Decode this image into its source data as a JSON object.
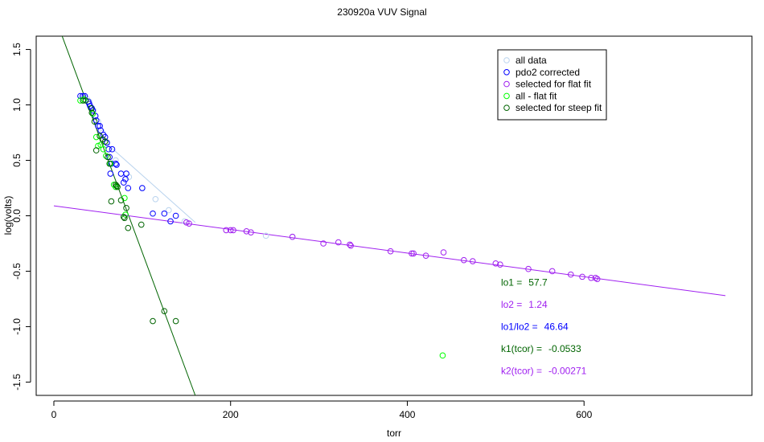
{
  "chart_data": {
    "type": "scatter",
    "title": "230920a   VUV Signal",
    "xlabel": "torr",
    "ylabel": "log(volts)",
    "xlim": [
      -20,
      790
    ],
    "ylim": [
      -1.62,
      1.62
    ],
    "x_ticks": [
      0,
      200,
      400,
      600
    ],
    "y_ticks": [
      -1.5,
      -1.0,
      -0.5,
      0.0,
      0.5,
      1.0,
      1.5
    ],
    "x_tick_labels": [
      "0",
      "200",
      "400",
      "600"
    ],
    "y_tick_labels": [
      "-1.5",
      "-1.0",
      "-0.5",
      "0.0",
      "0.5",
      "1.0",
      "1.5"
    ],
    "grid": false,
    "legend_position": "top-right",
    "legend": [
      {
        "label": "all data",
        "color": "#b9d3ee"
      },
      {
        "label": "pdo2 corrected",
        "color": "#0000ff"
      },
      {
        "label": "selected for flat fit",
        "color": "#a020f0"
      },
      {
        "label": "all - flat fit",
        "color": "#00ff00"
      },
      {
        "label": "selected for steep fit",
        "color": "#006400"
      }
    ],
    "series": [
      {
        "name": "all data",
        "color": "#b9d3ee",
        "marker": "circle",
        "points": [
          [
            32,
            1.08
          ],
          [
            37,
            1.06
          ],
          [
            40,
            1.03
          ],
          [
            45,
            0.95
          ],
          [
            50,
            0.85
          ],
          [
            55,
            0.75
          ],
          [
            60,
            0.65
          ],
          [
            70,
            0.5
          ],
          [
            85,
            0.35
          ],
          [
            100,
            0.25
          ],
          [
            115,
            0.15
          ],
          [
            130,
            0.05
          ],
          [
            148,
            -0.05
          ],
          [
            240,
            -0.18
          ],
          [
            270,
            -0.19
          ]
        ]
      },
      {
        "name": "pdo2 corrected",
        "color": "#0000ff",
        "marker": "circle",
        "points": [
          [
            30,
            1.08
          ],
          [
            33,
            1.08
          ],
          [
            35,
            1.08
          ],
          [
            39,
            1.03
          ],
          [
            40,
            1.01
          ],
          [
            41,
            0.99
          ],
          [
            43,
            0.97
          ],
          [
            44,
            0.95
          ],
          [
            47,
            0.9
          ],
          [
            48,
            0.86
          ],
          [
            50,
            0.81
          ],
          [
            52,
            0.81
          ],
          [
            53,
            0.77
          ],
          [
            56,
            0.73
          ],
          [
            58,
            0.71
          ],
          [
            60,
            0.66
          ],
          [
            62,
            0.6
          ],
          [
            66,
            0.6
          ],
          [
            63,
            0.53
          ],
          [
            65,
            0.47
          ],
          [
            70,
            0.47
          ],
          [
            71,
            0.46
          ],
          [
            64,
            0.38
          ],
          [
            76,
            0.38
          ],
          [
            82,
            0.38
          ],
          [
            81,
            0.33
          ],
          [
            79,
            0.3
          ],
          [
            84,
            0.25
          ],
          [
            100,
            0.25
          ],
          [
            112,
            0.02
          ],
          [
            125,
            0.02
          ],
          [
            132,
            -0.05
          ],
          [
            138,
            0.0
          ]
        ]
      },
      {
        "name": "selected for flat fit",
        "color": "#a020f0",
        "marker": "circle",
        "points": [
          [
            150,
            -0.06
          ],
          [
            153,
            -0.07
          ],
          [
            195,
            -0.13
          ],
          [
            200,
            -0.13
          ],
          [
            203,
            -0.13
          ],
          [
            218,
            -0.14
          ],
          [
            223,
            -0.15
          ],
          [
            270,
            -0.19
          ],
          [
            305,
            -0.25
          ],
          [
            322,
            -0.24
          ],
          [
            335,
            -0.26
          ],
          [
            336,
            -0.27
          ],
          [
            381,
            -0.32
          ],
          [
            405,
            -0.34
          ],
          [
            407,
            -0.34
          ],
          [
            421,
            -0.36
          ],
          [
            441,
            -0.33
          ],
          [
            464,
            -0.4
          ],
          [
            474,
            -0.41
          ],
          [
            500,
            -0.43
          ],
          [
            505,
            -0.44
          ],
          [
            537,
            -0.48
          ],
          [
            564,
            -0.5
          ],
          [
            585,
            -0.53
          ],
          [
            598,
            -0.55
          ],
          [
            608,
            -0.56
          ],
          [
            613,
            -0.56
          ],
          [
            615,
            -0.57
          ]
        ]
      },
      {
        "name": "all - flat fit",
        "color": "#00ff00",
        "marker": "circle",
        "points": [
          [
            30,
            1.04
          ],
          [
            34,
            1.05
          ],
          [
            44,
            0.92
          ],
          [
            48,
            0.71
          ],
          [
            50,
            0.63
          ],
          [
            53,
            0.64
          ],
          [
            56,
            0.6
          ],
          [
            59,
            0.54
          ],
          [
            64,
            0.47
          ],
          [
            68,
            0.28
          ],
          [
            70,
            0.26
          ],
          [
            80,
            0.16
          ],
          [
            81,
            0.01
          ],
          [
            440,
            -1.26
          ]
        ]
      },
      {
        "name": "selected for steep fit",
        "color": "#006400",
        "marker": "circle",
        "points": [
          [
            33,
            1.04
          ],
          [
            36,
            1.04
          ],
          [
            42,
            0.97
          ],
          [
            43,
            0.93
          ],
          [
            46,
            0.85
          ],
          [
            48,
            0.59
          ],
          [
            52,
            0.72
          ],
          [
            55,
            0.69
          ],
          [
            58,
            0.67
          ],
          [
            61,
            0.53
          ],
          [
            63,
            0.47
          ],
          [
            65,
            0.13
          ],
          [
            70,
            0.28
          ],
          [
            71,
            0.27
          ],
          [
            72,
            0.26
          ],
          [
            76,
            0.14
          ],
          [
            79,
            -0.01
          ],
          [
            80,
            -0.02
          ],
          [
            82,
            0.07
          ],
          [
            84,
            -0.11
          ],
          [
            99,
            -0.08
          ],
          [
            112,
            -0.95
          ],
          [
            125,
            -0.86
          ],
          [
            138,
            -0.95
          ]
        ]
      }
    ],
    "fit_lines": [
      {
        "name": "steep fit",
        "color": "#006400",
        "x": [
          8,
          160
        ],
        "y": [
          1.65,
          -1.62
        ]
      },
      {
        "name": "flat fit",
        "color": "#a020f0",
        "x": [
          0,
          760
        ],
        "y": [
          0.09,
          -0.72
        ]
      },
      {
        "name": "all data trend",
        "color": "#b9d3ee",
        "x": [
          60,
          160
        ],
        "y": [
          0.65,
          -0.06
        ]
      }
    ],
    "annotations": [
      {
        "label": "lo1 =",
        "value": "57.7",
        "color": "#006400",
        "x": 506,
        "y": -0.6
      },
      {
        "label": "lo2 =",
        "value": "1.24",
        "color": "#a020f0",
        "x": 506,
        "y": -0.8
      },
      {
        "label": "lo1/lo2 =",
        "value": "46.64",
        "color": "#0000ff",
        "x": 506,
        "y": -1.0
      },
      {
        "label": "k1(tcor) =",
        "value": "-0.0533",
        "color": "#006400",
        "x": 506,
        "y": -1.2
      },
      {
        "label": "k2(tcor) =",
        "value": "-0.00271",
        "color": "#a020f0",
        "x": 506,
        "y": -1.4
      }
    ]
  }
}
